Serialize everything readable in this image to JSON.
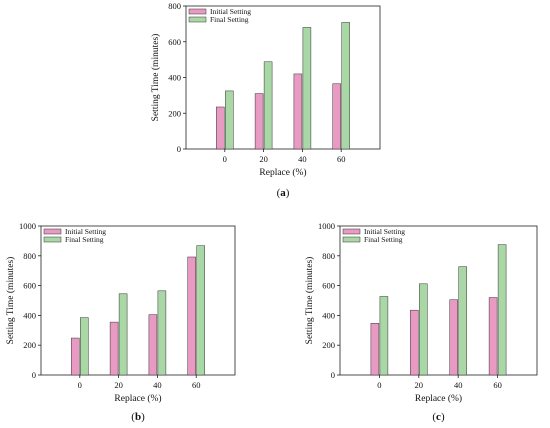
{
  "figure": {
    "background": "#ffffff",
    "colors": {
      "initial": "#e89ac3",
      "final": "#a9d7a6",
      "stroke": "#333333",
      "axis": "#222222"
    }
  },
  "chart_data": [
    {
      "type": "bar",
      "panel": "(a)",
      "caption_letter": "a",
      "categories": [
        "0",
        "20",
        "40",
        "60"
      ],
      "series": [
        {
          "name": "Initial Setting",
          "values": [
            235,
            310,
            420,
            365
          ]
        },
        {
          "name": "Final Setting",
          "values": [
            325,
            488,
            680,
            708
          ]
        }
      ],
      "xlabel": "Replace (%)",
      "ylabel": "Setting Time (minutes)",
      "ylim": [
        0,
        800
      ],
      "yticks": [
        0,
        200,
        400,
        600,
        800
      ],
      "legend": "top-left",
      "grid": false
    },
    {
      "type": "bar",
      "panel": "(b)",
      "caption_letter": "b",
      "categories": [
        "0",
        "20",
        "40",
        "60"
      ],
      "series": [
        {
          "name": "Initial Setting",
          "values": [
            248,
            355,
            405,
            792
          ]
        },
        {
          "name": "Final Setting",
          "values": [
            385,
            545,
            565,
            868
          ]
        }
      ],
      "xlabel": "Replace (%)",
      "ylabel": "Setting Time (minutes)",
      "ylim": [
        0,
        1000
      ],
      "yticks": [
        0,
        200,
        400,
        600,
        800,
        1000
      ],
      "legend": "top-left",
      "grid": false
    },
    {
      "type": "bar",
      "panel": "(c)",
      "caption_letter": "c",
      "categories": [
        "0",
        "20",
        "40",
        "60"
      ],
      "series": [
        {
          "name": "Initial Setting",
          "values": [
            347,
            435,
            505,
            520
          ]
        },
        {
          "name": "Final Setting",
          "values": [
            527,
            612,
            727,
            875
          ]
        }
      ],
      "xlabel": "Replace (%)",
      "ylabel": "Setting Time (minutes)",
      "ylim": [
        0,
        1000
      ],
      "yticks": [
        0,
        200,
        400,
        600,
        800,
        1000
      ],
      "legend": "top-left",
      "grid": false
    }
  ]
}
